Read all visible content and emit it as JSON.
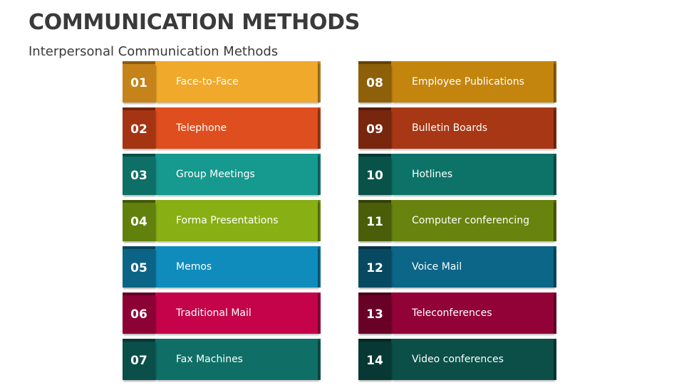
{
  "title": "COMMUNICATION METHODS",
  "subtitle": "Interpersonal Communication Methods",
  "columns": [
    {
      "items": [
        {
          "number": "01",
          "label": "Face-to-Face",
          "color": "#F0A92A",
          "num_color": "#C68319"
        },
        {
          "number": "02",
          "label": "Telephone",
          "color": "#DE4E1E",
          "num_color": "#A53412"
        },
        {
          "number": "03",
          "label": "Group Meetings",
          "color": "#16998E",
          "num_color": "#0E6F67"
        },
        {
          "number": "04",
          "label": "Forma Presentations",
          "color": "#88AF14",
          "num_color": "#62800C"
        },
        {
          "number": "05",
          "label": "Memos",
          "color": "#0F8CBB",
          "num_color": "#0B6486"
        },
        {
          "number": "06",
          "label": "Traditional Mail",
          "color": "#C4034A",
          "num_color": "#8C0234"
        },
        {
          "number": "07",
          "label": "Fax Machines",
          "color": "#0F6F66",
          "num_color": "#0A4F49"
        }
      ]
    },
    {
      "items": [
        {
          "number": "08",
          "label": "Employee Publications",
          "color": "#C3850E",
          "num_color": "#8E600A"
        },
        {
          "number": "09",
          "label": "Bulletin Boards",
          "color": "#A83815",
          "num_color": "#78260E"
        },
        {
          "number": "10",
          "label": "Hotlines",
          "color": "#0D7368",
          "num_color": "#09524A"
        },
        {
          "number": "11",
          "label": "Computer conferencing",
          "color": "#68840F",
          "num_color": "#4A5E0A"
        },
        {
          "number": "12",
          "label": "Voice Mail",
          "color": "#0B6688",
          "num_color": "#084962"
        },
        {
          "number": "13",
          "label": "Teleconferences",
          "color": "#920237",
          "num_color": "#690127"
        },
        {
          "number": "14",
          "label": "Video conferences",
          "color": "#0B4F48",
          "num_color": "#073833"
        }
      ]
    }
  ]
}
